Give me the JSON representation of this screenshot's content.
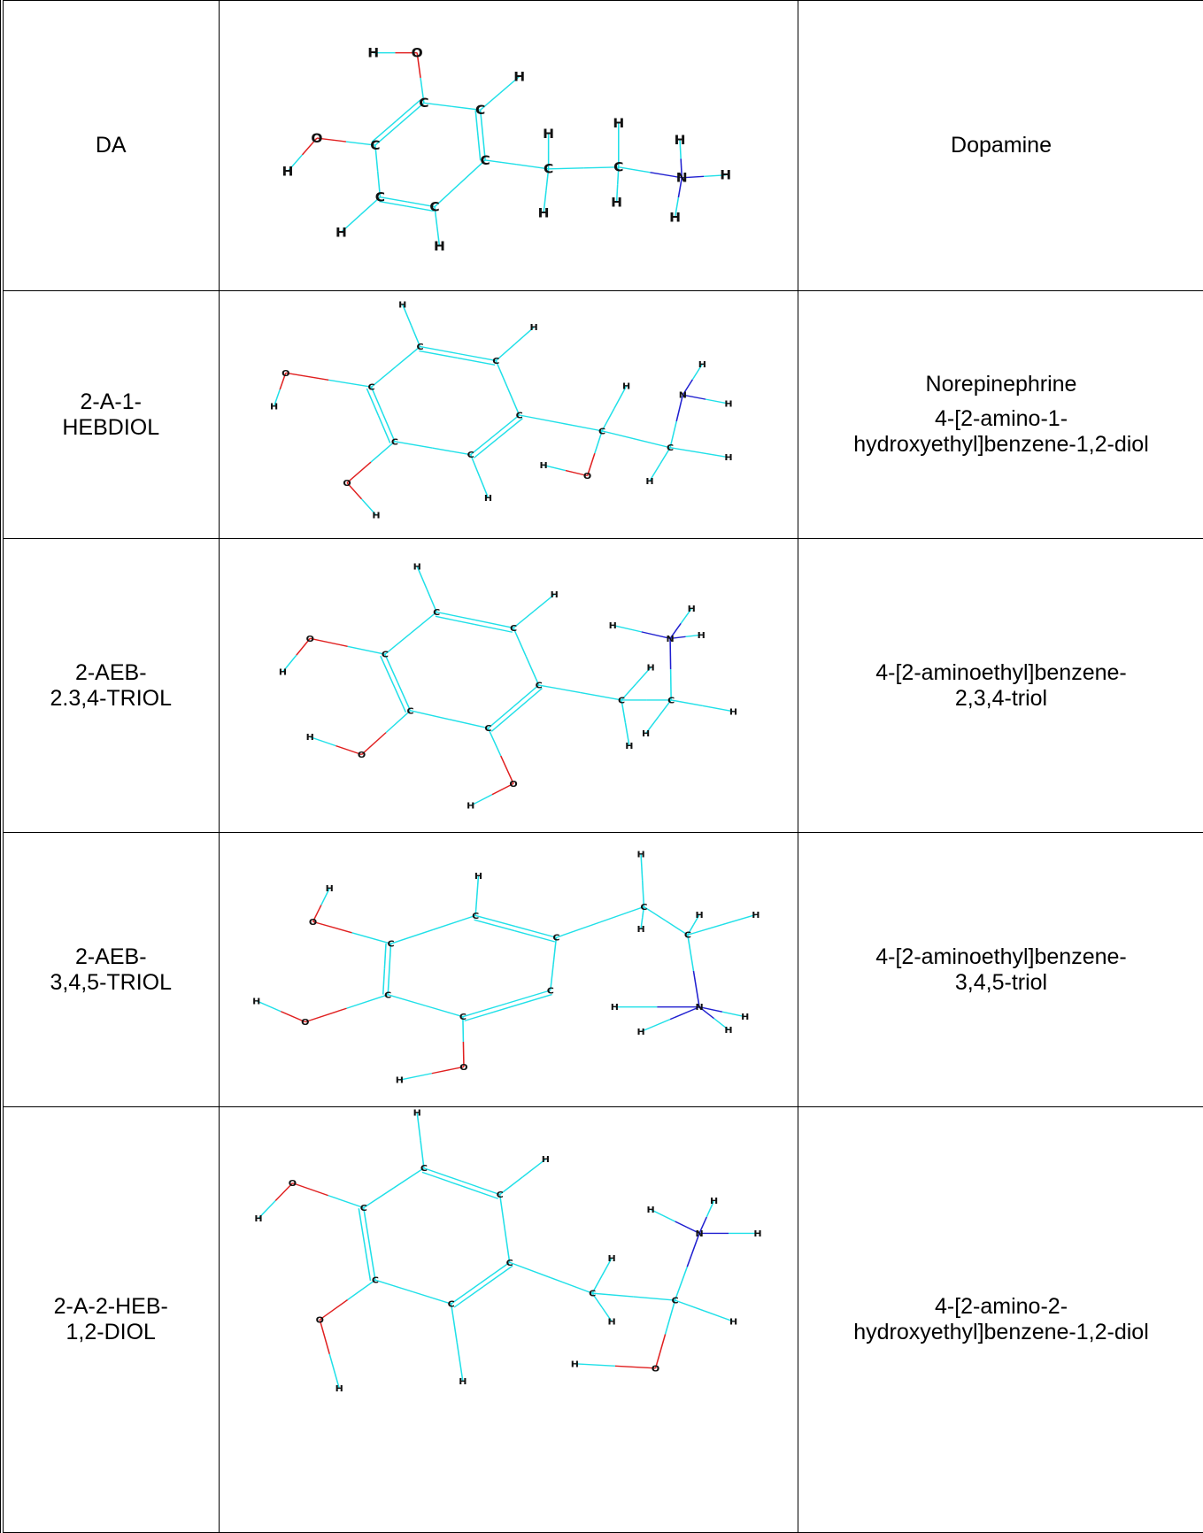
{
  "table": {
    "rows": [
      {
        "code": "DA",
        "structure": {
          "atoms": [
            "O",
            "H",
            "C",
            "C",
            "H",
            "C",
            "O",
            "H",
            "C",
            "C",
            "C",
            "H",
            "H",
            "C",
            "H",
            "H",
            "C",
            "H",
            "H",
            "N",
            "H",
            "H",
            "H"
          ]
        },
        "names": [
          "Dopamine"
        ]
      },
      {
        "code": "2-A-1-HEBDIOL",
        "structure": {
          "atoms": [
            "H",
            "C",
            "C",
            "H",
            "C",
            "O",
            "H",
            "C",
            "C",
            "C",
            "O",
            "H",
            "H",
            "C",
            "H",
            "O",
            "H",
            "C",
            "N",
            "H",
            "H",
            "H",
            "H"
          ]
        },
        "names": [
          "Norepinephrine",
          "4-[2-amino-1-hydroxyethyl]benzene-1,2-diol"
        ]
      },
      {
        "code": "2-AEB-2.3,4-TRIOL",
        "structure": {
          "atoms": [
            "H",
            "C",
            "C",
            "H",
            "C",
            "O",
            "H",
            "C",
            "C",
            "C",
            "O",
            "H",
            "O",
            "H",
            "C",
            "H",
            "C",
            "N",
            "H",
            "H",
            "H",
            "H",
            "H",
            "H"
          ]
        },
        "names": [
          "4-[2-aminoethyl]benzene-2,3,4-triol"
        ]
      },
      {
        "code": "2-AEB-3,4,5-TRIOL",
        "structure": {
          "atoms": [
            "H",
            "H",
            "C",
            "C",
            "C",
            "H",
            "O",
            "C",
            "C",
            "O",
            "H",
            "C",
            "O",
            "H",
            "C",
            "C",
            "H",
            "H",
            "H",
            "N",
            "H",
            "H",
            "H",
            "H"
          ]
        },
        "names": [
          "4-[2-aminoethyl]benzene-3,4,5-triol"
        ]
      },
      {
        "code": "2-A-2-HEB-1,2-DIOL",
        "structure": {
          "atoms": [
            "H",
            "C",
            "C",
            "H",
            "O",
            "H",
            "C",
            "C",
            "C",
            "C",
            "O",
            "H",
            "H",
            "C",
            "H",
            "H",
            "H",
            "C",
            "N",
            "H",
            "H",
            "H",
            "O",
            "H"
          ]
        },
        "names": [
          "4-[2-amino-2-hydroxyethyl]benzene-1,2-diol"
        ]
      }
    ]
  }
}
